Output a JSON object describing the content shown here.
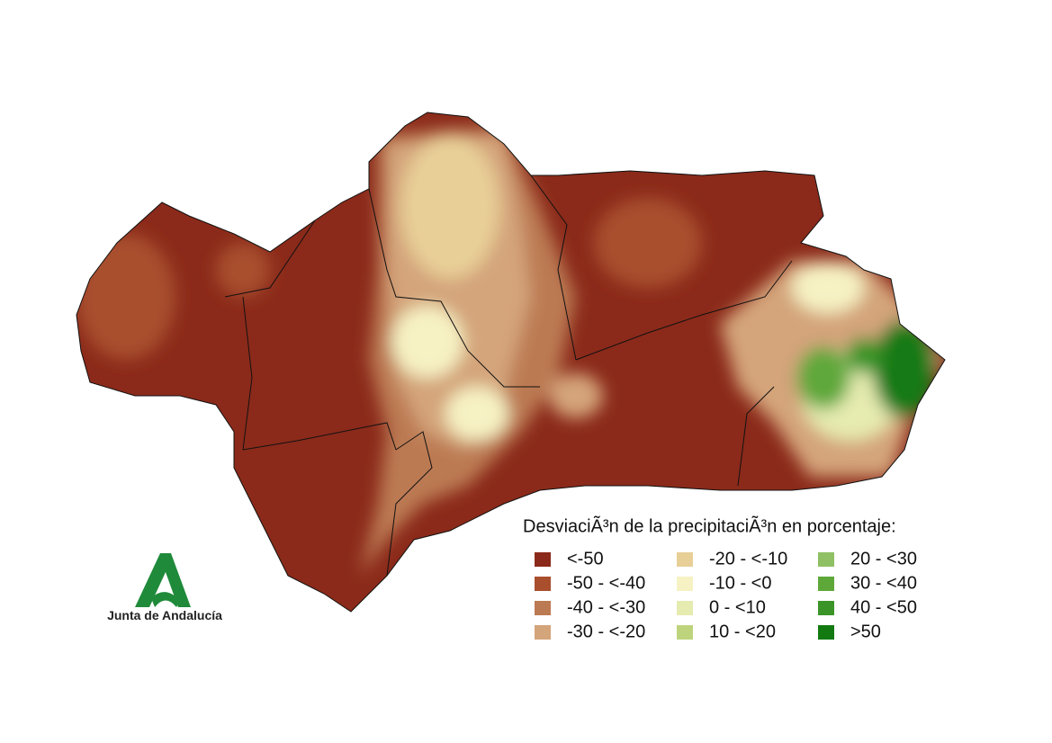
{
  "legend": {
    "title": "DesviaciÃ³n de la precipitaciÃ³n en porcentaje:",
    "items": [
      {
        "label": "<-50",
        "color": "#8b2a1a"
      },
      {
        "label": "-50 - <-40",
        "color": "#a94f2e"
      },
      {
        "label": "-40 - <-30",
        "color": "#bc7a52"
      },
      {
        "label": "-30 - <-20",
        "color": "#d4a47a"
      },
      {
        "label": "-20 - <-10",
        "color": "#e8cf98"
      },
      {
        "label": "-10 - <0",
        "color": "#f6f2c4"
      },
      {
        "label": "0 - <10",
        "color": "#e6ebb0"
      },
      {
        "label": "10 - <20",
        "color": "#bed47c"
      },
      {
        "label": "20 - <30",
        "color": "#8fc063"
      },
      {
        "label": "30 - <40",
        "color": "#5ea83a"
      },
      {
        "label": "40 - <50",
        "color": "#3a9428"
      },
      {
        "label": ">50",
        "color": "#137a12"
      }
    ]
  },
  "logo": {
    "text": "Junta de Andalucía"
  }
}
